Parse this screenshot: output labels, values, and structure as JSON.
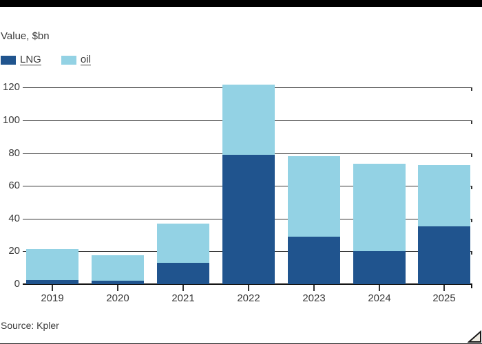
{
  "subtitle": "Value, $bn",
  "source": "Source: Kpler",
  "legend": {
    "items": [
      {
        "label": "LNG",
        "color": "#20548E"
      },
      {
        "label": "oil",
        "color": "#93D2E4"
      }
    ]
  },
  "colors": {
    "lng": "#20548E",
    "oil": "#93D2E4",
    "text": "#3A3A3A",
    "grid": "#333333",
    "axis": "#111111",
    "top_rule": "#000000",
    "expand_fill": "#EFECE3",
    "expand_stroke": "#1A1A1A"
  },
  "chart_data": {
    "type": "bar",
    "stacked": true,
    "categories": [
      "2019",
      "2020",
      "2021",
      "2022",
      "2023",
      "2024",
      "2025"
    ],
    "series": [
      {
        "name": "LNG",
        "color": "#20548E",
        "values": [
          2.5,
          2,
          13,
          79,
          29,
          20,
          35
        ]
      },
      {
        "name": "oil",
        "color": "#93D2E4",
        "values": [
          19,
          15.5,
          24,
          43,
          49,
          53.5,
          37.5
        ]
      }
    ],
    "totals": [
      21.5,
      17.5,
      37,
      122,
      78,
      73.5,
      72.5
    ],
    "title": "",
    "subtitle": "Value, $bn",
    "xlabel": "",
    "ylabel": "Value, $bn",
    "ylim": [
      0,
      120
    ],
    "ytick_step": 20,
    "yticks": [
      0,
      20,
      40,
      60,
      80,
      100,
      120
    ],
    "grid": "horizontal",
    "legend_position": "top-left",
    "source": "Source: Kpler"
  }
}
